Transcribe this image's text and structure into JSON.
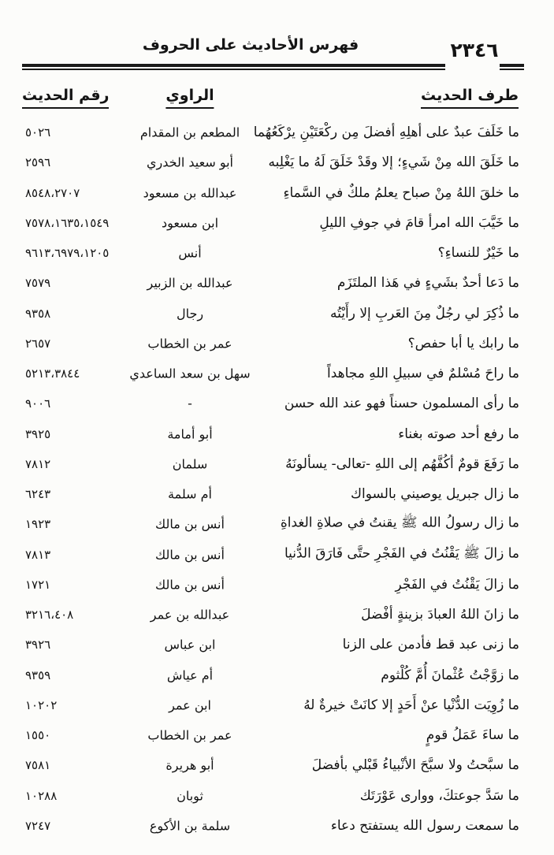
{
  "header": {
    "title": "فهرس الأحاديث على الحروف",
    "page_number": "٢٣٤٦"
  },
  "columns": {
    "hadith": "طرف الحديث",
    "narrator": "الراوي",
    "number": "رقم الحديث"
  },
  "rows": [
    {
      "hadith": "ما خَلَفَ عبدٌ على أهلِهِ أفضلَ مِن ركْعَتَيْنِ يرْكَعُهُما",
      "narrator": "المطعم بن المقدام",
      "number": "٥٠٢٦"
    },
    {
      "hadith": "ما خَلَقَ الله مِنْ شَيءٍ؛ إلا وقَدْ خَلَقَ لَهُ ما يَغْلِبه",
      "narrator": "أبو سعيد الخدري",
      "number": "٢٥٩٦"
    },
    {
      "hadith": "ما خلقَ اللهُ مِنْ صباح يعلمُ ملكٌ في السَّماءِ",
      "narrator": "عبدالله بن مسعود",
      "number": "٨٥٤٨،٢٧٠٧"
    },
    {
      "hadith": "ما خَيَّبَ الله امرأ قامَ في جوفِ الليلِ",
      "narrator": "ابن مسعود",
      "number": "٧٥٧٨،١٦٣٥،١٥٤٩"
    },
    {
      "hadith": "ما خَيْرٌ للنساءِ؟",
      "narrator": "أنس",
      "number": "٩٦١٣،٦٩٧٩،١٢٠٥"
    },
    {
      "hadith": "ما دَعا أحدٌ بشَيءٍ في هَذا الملتَزَم",
      "narrator": "عبدالله بن الزبير",
      "number": "٧٥٧٩"
    },
    {
      "hadith": "ما ذُكِرَ لي رجُلٌ مِنَ العَربِ إلا رأَيْتُه",
      "narrator": "رجال",
      "number": "٩٣٥٨"
    },
    {
      "hadith": "ما رابك يا أبا حفص؟",
      "narrator": "عمر بن الخطاب",
      "number": "٢٦٥٧"
    },
    {
      "hadith": "ما راحَ مُسْلمٌ في سبيلِ اللهِ مجاهداً",
      "narrator": "سهل بن سعد الساعدي",
      "number": "٥٢١٣،٣٨٤٤"
    },
    {
      "hadith": "ما رأى المسلمون حسناً فهو عند الله حسن",
      "narrator": "-",
      "number": "٩٠٠٦"
    },
    {
      "hadith": "ما رفع أحد صوته بغناء",
      "narrator": "أبو أمامة",
      "number": "٣٩٢٥"
    },
    {
      "hadith": "ما رَفَعَ قومٌ أكُفَّهُم إلى اللهِ -تعالى- يسألونَهُ",
      "narrator": "سلمان",
      "number": "٧٨١٢"
    },
    {
      "hadith": "ما زال جبريل يوصيني بالسواك",
      "narrator": "أم سلمة",
      "number": "٦٢٤٣"
    },
    {
      "hadith": "ما زال رسولُ الله ﷺ يقنتُ في صلاةِ الغداةِ",
      "narrator": "أنس بن مالك",
      "number": "١٩٢٣"
    },
    {
      "hadith": "ما زالَ ﷺ يَقْنُتُ في الفَجْرِ حتَّى فَارَقَ الدُّنيا",
      "narrator": "أنس بن مالك",
      "number": "٧٨١٣"
    },
    {
      "hadith": "ما زالَ يَقْنُتُ في الفَجْرِ",
      "narrator": "أنس بن مالك",
      "number": "١٧٢١"
    },
    {
      "hadith": "ما زانَ اللهُ العبادَ بزينةٍ أفْضلَ",
      "narrator": "عبدالله بن عمر",
      "number": "٣٢١٦،٤٠٨"
    },
    {
      "hadith": "ما زنى عبد قط فأدمن على الزنا",
      "narrator": "ابن عباس",
      "number": "٣٩٢٦"
    },
    {
      "hadith": "ما زوَّجْتُ عُثْمانَ أُمَّ كُلْثوم",
      "narrator": "أم عياش",
      "number": "٩٣٥٩"
    },
    {
      "hadith": "ما زُوِيَت الدُّنْيا عنْ أَحَدٍ إلا كانَتْ خيرةٌ لهُ",
      "narrator": "ابن عمر",
      "number": "١٠٢٠٢"
    },
    {
      "hadith": "ما ساءَ عَمَلُ قومٍ",
      "narrator": "عمر بن الخطاب",
      "number": "١٥٥٠"
    },
    {
      "hadith": "ما سبَّحتُ ولا سبَّحَ الأنْبياءُ قَبْلي بأفضلَ",
      "narrator": "أبو هريرة",
      "number": "٧٥٨١"
    },
    {
      "hadith": "ما سَدَّ جوعتكَ، ووارى عَوْرَتَك",
      "narrator": "ثوبان",
      "number": "١٠٢٨٨"
    },
    {
      "hadith": "ما سمعت رسول الله يستفتح دعاء",
      "narrator": "سلمة بن الأكوع",
      "number": "٧٢٤٧"
    }
  ]
}
